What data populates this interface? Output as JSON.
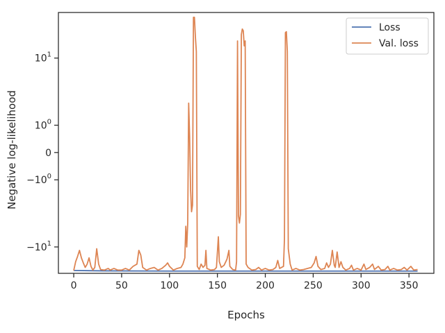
{
  "chart_data": {
    "type": "line",
    "title": "",
    "xlabel": "Epochs",
    "ylabel": "Negative log-likelihood",
    "yscale": "symlog",
    "xlim": [
      -16,
      376
    ],
    "ylim": [
      -20.5,
      34
    ],
    "grid": false,
    "legend_position": "top-right",
    "x_ticks": [
      0,
      50,
      100,
      150,
      200,
      250,
      300,
      350
    ],
    "y_ticks": [
      {
        "value": 10,
        "label": "10",
        "exp": "1",
        "sign": ""
      },
      {
        "value": 1,
        "label": "10",
        "exp": "0",
        "sign": ""
      },
      {
        "value": 0,
        "label": "0",
        "exp": "",
        "sign": ""
      },
      {
        "value": -1,
        "label": "10",
        "exp": "0",
        "sign": "−"
      },
      {
        "value": -10,
        "label": "10",
        "exp": "1",
        "sign": "−"
      }
    ],
    "series": [
      {
        "name": "Loss",
        "color": "#4c72b0",
        "points": [
          [
            0,
            -19.0
          ],
          [
            30,
            -19.2
          ],
          [
            100,
            -19.3
          ],
          [
            200,
            -19.3
          ],
          [
            300,
            -19.3
          ],
          [
            359,
            -19.3
          ]
        ]
      },
      {
        "name": "Val. loss",
        "color": "#dd8452",
        "points": [
          [
            0,
            -19.0
          ],
          [
            2,
            -15.0
          ],
          [
            4,
            -13.0
          ],
          [
            6,
            -11.0
          ],
          [
            8,
            -13.5
          ],
          [
            10,
            -15.5
          ],
          [
            12,
            -17.5
          ],
          [
            14,
            -16.0
          ],
          [
            16,
            -13.5
          ],
          [
            18,
            -17.0
          ],
          [
            20,
            -18.8
          ],
          [
            22,
            -17.5
          ],
          [
            24,
            -10.5
          ],
          [
            26,
            -16.0
          ],
          [
            28,
            -18.5
          ],
          [
            32,
            -18.8
          ],
          [
            36,
            -18.0
          ],
          [
            38,
            -18.8
          ],
          [
            42,
            -18.0
          ],
          [
            46,
            -18.8
          ],
          [
            50,
            -18.8
          ],
          [
            54,
            -18.0
          ],
          [
            58,
            -18.8
          ],
          [
            62,
            -17.0
          ],
          [
            66,
            -16.0
          ],
          [
            68,
            -11.0
          ],
          [
            70,
            -12.5
          ],
          [
            72,
            -17.5
          ],
          [
            76,
            -18.8
          ],
          [
            80,
            -18.0
          ],
          [
            84,
            -17.5
          ],
          [
            88,
            -18.8
          ],
          [
            92,
            -18.0
          ],
          [
            96,
            -16.5
          ],
          [
            98,
            -15.5
          ],
          [
            100,
            -17.0
          ],
          [
            104,
            -18.8
          ],
          [
            108,
            -18.0
          ],
          [
            112,
            -17.5
          ],
          [
            114,
            -16.0
          ],
          [
            116,
            -13.5
          ],
          [
            117,
            -5.5
          ],
          [
            118,
            -10.0
          ],
          [
            119,
            -5.0
          ],
          [
            120,
            2.5
          ],
          [
            121,
            0.5
          ],
          [
            122,
            -1.6
          ],
          [
            123,
            -3.5
          ],
          [
            124,
            -2.8
          ],
          [
            125,
            30.0
          ],
          [
            126,
            30.0
          ],
          [
            127,
            18.0
          ],
          [
            128,
            12.0
          ],
          [
            129,
            -17.0
          ],
          [
            131,
            -18.5
          ],
          [
            133,
            -16.0
          ],
          [
            135,
            -17.5
          ],
          [
            137,
            -16.5
          ],
          [
            138,
            -11.0
          ],
          [
            139,
            -18.0
          ],
          [
            143,
            -18.8
          ],
          [
            147,
            -18.5
          ],
          [
            149,
            -17.5
          ],
          [
            151,
            -7.5
          ],
          [
            152,
            -15.0
          ],
          [
            154,
            -17.5
          ],
          [
            157,
            -16.5
          ],
          [
            160,
            -14.0
          ],
          [
            162,
            -11.0
          ],
          [
            163,
            -17.0
          ],
          [
            166,
            -18.5
          ],
          [
            169,
            -18.8
          ],
          [
            170,
            -15.0
          ],
          [
            171,
            16.0
          ],
          [
            172,
            -4.0
          ],
          [
            173,
            -5.0
          ],
          [
            174,
            -3.8
          ],
          [
            175,
            19.0
          ],
          [
            176,
            22.0
          ],
          [
            177,
            21.0
          ],
          [
            178,
            14.0
          ],
          [
            179,
            16.0
          ],
          [
            180,
            -16.0
          ],
          [
            182,
            -17.5
          ],
          [
            186,
            -18.8
          ],
          [
            190,
            -18.5
          ],
          [
            193,
            -17.5
          ],
          [
            196,
            -18.8
          ],
          [
            200,
            -18.0
          ],
          [
            204,
            -18.8
          ],
          [
            208,
            -18.5
          ],
          [
            211,
            -17.5
          ],
          [
            213,
            -14.5
          ],
          [
            215,
            -18.0
          ],
          [
            217,
            -17.5
          ],
          [
            219,
            -17.0
          ],
          [
            220,
            -8.0
          ],
          [
            221,
            20.0
          ],
          [
            222,
            20.5
          ],
          [
            223,
            12.0
          ],
          [
            224,
            -10.5
          ],
          [
            226,
            -16.0
          ],
          [
            228,
            -18.8
          ],
          [
            232,
            -18.0
          ],
          [
            236,
            -18.8
          ],
          [
            240,
            -18.5
          ],
          [
            244,
            -18.0
          ],
          [
            248,
            -17.5
          ],
          [
            251,
            -15.5
          ],
          [
            253,
            -13.0
          ],
          [
            255,
            -17.0
          ],
          [
            258,
            -18.5
          ],
          [
            262,
            -18.0
          ],
          [
            264,
            -15.5
          ],
          [
            266,
            -17.5
          ],
          [
            268,
            -16.0
          ],
          [
            270,
            -11.0
          ],
          [
            272,
            -16.5
          ],
          [
            273,
            -17.5
          ],
          [
            275,
            -11.5
          ],
          [
            277,
            -17.5
          ],
          [
            279,
            -15.0
          ],
          [
            281,
            -17.5
          ],
          [
            284,
            -18.8
          ],
          [
            288,
            -18.0
          ],
          [
            290,
            -16.5
          ],
          [
            292,
            -18.8
          ],
          [
            296,
            -18.0
          ],
          [
            300,
            -18.8
          ],
          [
            303,
            -16.0
          ],
          [
            305,
            -18.5
          ],
          [
            309,
            -17.5
          ],
          [
            312,
            -16.0
          ],
          [
            314,
            -18.5
          ],
          [
            318,
            -17.0
          ],
          [
            321,
            -18.8
          ],
          [
            325,
            -18.5
          ],
          [
            328,
            -17.0
          ],
          [
            330,
            -18.8
          ],
          [
            334,
            -18.0
          ],
          [
            338,
            -18.8
          ],
          [
            342,
            -18.5
          ],
          [
            345,
            -17.5
          ],
          [
            348,
            -18.8
          ],
          [
            352,
            -17.0
          ],
          [
            355,
            -18.8
          ],
          [
            359,
            -18.5
          ]
        ]
      }
    ]
  }
}
